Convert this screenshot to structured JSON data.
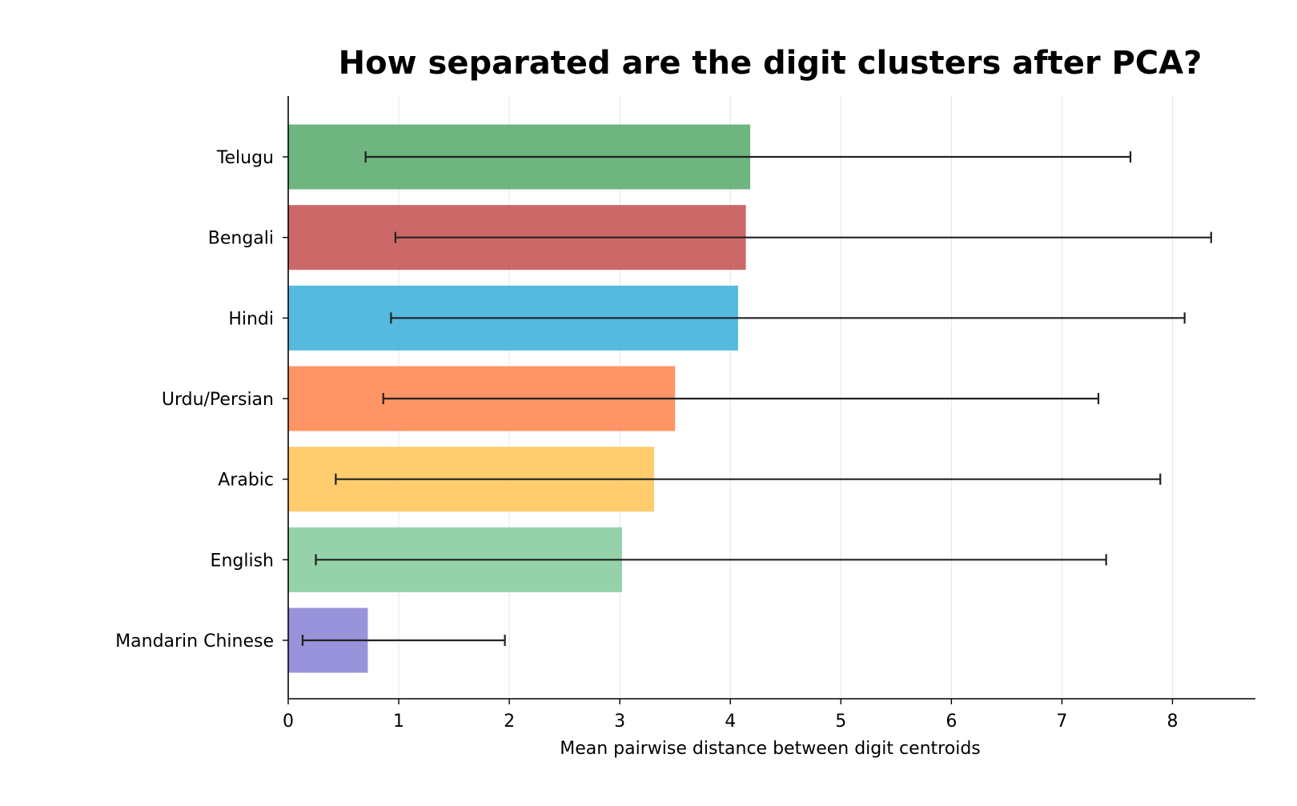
{
  "chart_data": {
    "type": "bar",
    "orientation": "horizontal",
    "title": "How separated are the digit clusters after PCA?",
    "xlabel": "Mean pairwise distance between digit centroids",
    "ylabel": "",
    "xlim": [
      0,
      8.75
    ],
    "xticks": [
      "0",
      "1",
      "2",
      "3",
      "4",
      "5",
      "6",
      "7",
      "8"
    ],
    "grid": "vertical",
    "categories": [
      "Telugu",
      "Bengali",
      "Hindi",
      "Urdu/Persian",
      "Arabic",
      "English",
      "Mandarin Chinese"
    ],
    "values": [
      4.18,
      4.14,
      4.07,
      3.5,
      3.31,
      3.02,
      0.72
    ],
    "error_low": [
      0.7,
      0.97,
      0.93,
      0.86,
      0.43,
      0.25,
      0.13
    ],
    "error_high": [
      7.62,
      8.35,
      8.11,
      7.33,
      7.89,
      7.4,
      1.96
    ],
    "colors": [
      "#5aab6e",
      "#c65353",
      "#3eb0d9",
      "#ff8550",
      "#ffc65a",
      "#86cc9e",
      "#8a84d6"
    ],
    "errorbar_color": "#222222"
  }
}
